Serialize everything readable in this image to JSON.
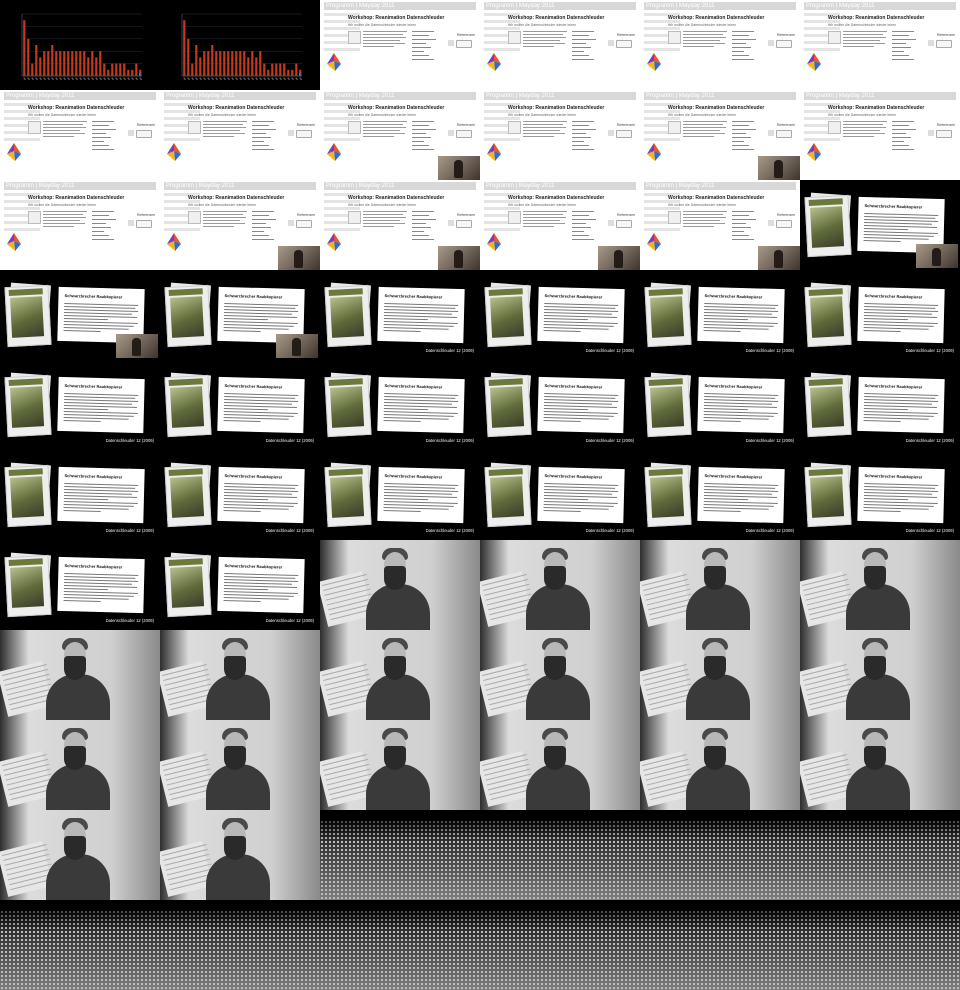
{
  "colors": {
    "chart_bars": "#c43a1a",
    "background": "#000000"
  },
  "chart_data": [
    {
      "type": "bar",
      "title": "",
      "values": [
        9,
        6,
        2,
        5,
        3,
        4,
        4,
        5,
        4,
        4,
        4,
        4,
        4,
        4,
        4,
        4,
        3,
        4,
        3,
        4,
        2,
        1,
        2,
        2,
        2,
        2,
        1,
        1,
        2,
        1
      ]
    },
    {
      "type": "bar",
      "title": "",
      "values": [
        9,
        6,
        2,
        5,
        3,
        4,
        4,
        5,
        4,
        4,
        4,
        4,
        4,
        4,
        4,
        4,
        3,
        4,
        3,
        4,
        2,
        1,
        2,
        2,
        2,
        2,
        1,
        1,
        2,
        1
      ]
    }
  ],
  "web_slide": {
    "header": "Programm | Mayday 2011",
    "title": "Workshop: Reanimation Datenschleuder",
    "subtitle": "Wir wollen die Datenschleuder wieder leben",
    "references_label": "Referenzen",
    "button_label": "View"
  },
  "paper_slide": {
    "doc_title": "Schwarzbrecher Raubkopierer",
    "caption": "Datenschleuder 12 (2009)"
  },
  "frames": [
    "chart",
    "chart",
    "web",
    "web",
    "web",
    "web",
    "web",
    "web",
    "web-cam",
    "web",
    "web-cam",
    "web",
    "web",
    "web-cam",
    "web-cam",
    "web-cam",
    "web-cam",
    "paper-cam",
    "paper-cam",
    "paper-cam",
    "paper",
    "paper",
    "paper",
    "paper",
    "paper",
    "paper",
    "paper",
    "paper",
    "paper",
    "paper",
    "paper",
    "paper",
    "paper",
    "paper",
    "paper",
    "paper",
    "paper",
    "paper",
    "portrait",
    "portrait",
    "portrait",
    "portrait",
    "portrait",
    "portrait",
    "portrait",
    "portrait",
    "portrait",
    "portrait",
    "portrait",
    "portrait",
    "portrait",
    "portrait",
    "portrait",
    "portrait",
    "portrait",
    "portrait",
    "crowd",
    "crowd",
    "crowd",
    "crowd",
    "crowd",
    "crowd",
    "crowd",
    "crowd",
    "crowd",
    "crowd"
  ]
}
